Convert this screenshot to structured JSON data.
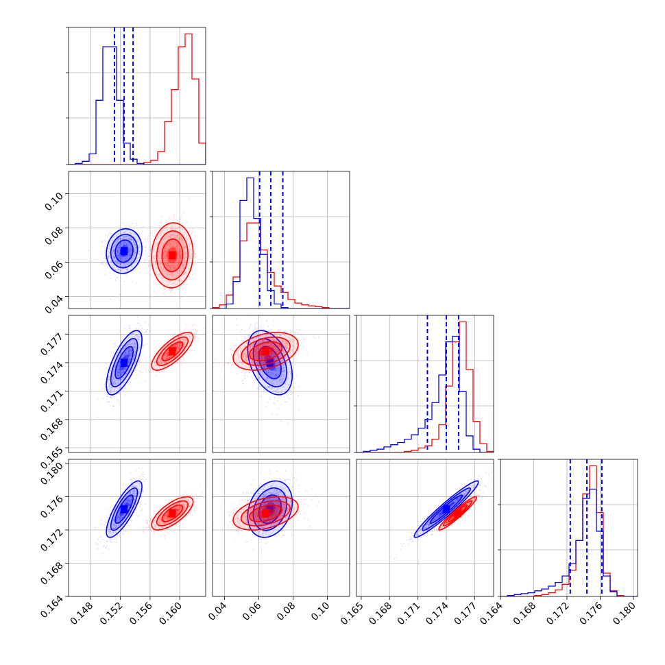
{
  "chart_data": {
    "type": "corner",
    "title": "",
    "series": [
      {
        "name": "",
        "color": "#0000ff",
        "mean": [
          0.1525,
          0.0665,
          0.174,
          0.1745
        ],
        "std": [
          0.0012,
          0.0065,
          0.0017,
          0.0017
        ],
        "corr": [
          [
            1,
            0.1,
            0.7,
            0.8
          ],
          [
            0.1,
            1,
            -0.4,
            0.25
          ],
          [
            0.7,
            -0.4,
            1,
            0.96
          ],
          [
            0.8,
            0.25,
            0.96,
            1
          ]
        ],
        "quantiles": [
          [
            0.1512,
            0.1525,
            0.1537
          ],
          [
            0.0605,
            0.067,
            0.074
          ],
          [
            0.172,
            0.174,
            0.1753
          ],
          [
            0.1724,
            0.1744,
            0.1762
          ]
        ]
      },
      {
        "name": "",
        "color": "#ff0000",
        "mean": [
          0.159,
          0.064,
          0.1752,
          0.174
        ],
        "std": [
          0.0014,
          0.0095,
          0.001,
          0.001
        ],
        "corr": [
          [
            1,
            0.05,
            0.75,
            0.7
          ],
          [
            0.05,
            1,
            0.35,
            0.4
          ],
          [
            0.75,
            0.35,
            1,
            0.95
          ],
          [
            0.7,
            0.4,
            0.95,
            1
          ]
        ]
      }
    ],
    "params": [
      {
        "range": [
          0.145,
          0.1635
        ],
        "ticks": [
          "0.148",
          "0.152",
          "0.156",
          "0.160"
        ]
      },
      {
        "range": [
          0.033,
          0.113
        ],
        "ticks": [
          "0.04",
          "0.06",
          "0.08",
          "0.10"
        ]
      },
      {
        "range": [
          0.1645,
          0.179
        ],
        "ticks": [
          "0.165",
          "0.168",
          "0.171",
          "0.174",
          "0.177"
        ]
      },
      {
        "range": [
          0.164,
          0.1805
        ],
        "ticks": [
          "0.164",
          "0.168",
          "0.172",
          "0.176",
          "0.180"
        ]
      }
    ],
    "histograms": [
      {
        "blue": [
          0,
          1,
          3,
          10,
          60,
          110,
          110,
          60,
          20,
          5,
          1,
          0,
          0,
          0,
          0,
          0,
          0,
          0,
          0,
          0
        ],
        "red": [
          0,
          0,
          0,
          0,
          0,
          0,
          0,
          0,
          0,
          0,
          0,
          2,
          4,
          12,
          40,
          70,
          110,
          122,
          80,
          20
        ]
      },
      {
        "blue": [
          0,
          0,
          5,
          30,
          120,
          145,
          100,
          60,
          20,
          5,
          1,
          0,
          0,
          0,
          0,
          0,
          0,
          0,
          0,
          0
        ],
        "red": [
          1,
          4,
          15,
          35,
          75,
          95,
          95,
          65,
          40,
          25,
          18,
          10,
          6,
          4,
          3,
          2,
          1,
          0,
          0,
          0
        ]
      },
      {
        "blue": [
          0,
          1,
          2,
          3,
          5,
          7,
          9,
          12,
          16,
          22,
          30,
          45,
          70,
          100,
          105,
          55,
          15,
          3,
          0,
          0
        ],
        "red": [
          0,
          0,
          0,
          0,
          0,
          0,
          0,
          1,
          2,
          4,
          6,
          12,
          25,
          60,
          100,
          118,
          75,
          28,
          8,
          1
        ]
      },
      {
        "blue": [
          0,
          1,
          2,
          3,
          4,
          6,
          8,
          11,
          15,
          22,
          35,
          60,
          105,
          115,
          70,
          22,
          5,
          0,
          0,
          0
        ],
        "red": [
          0,
          0,
          0,
          0,
          0,
          1,
          2,
          4,
          7,
          13,
          28,
          60,
          110,
          140,
          90,
          25,
          6,
          1,
          0,
          0
        ]
      }
    ],
    "grid": true,
    "grid_ticks": [
      [
        "0.148",
        "0.152",
        "0.156",
        "0.160"
      ],
      [
        "0.04",
        "0.06",
        "0.08",
        "0.10"
      ],
      [
        "0.165",
        "0.168",
        "0.171",
        "0.174",
        "0.177"
      ],
      [
        "0.164",
        "0.168",
        "0.172",
        "0.176",
        "0.180"
      ]
    ]
  }
}
